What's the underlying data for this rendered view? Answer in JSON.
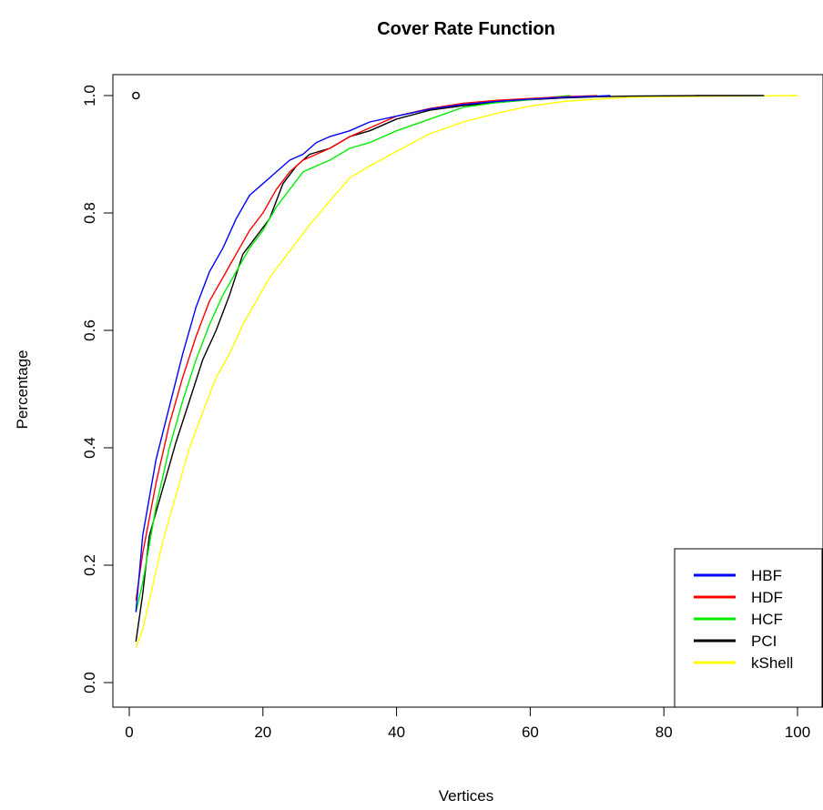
{
  "chart_data": {
    "type": "line",
    "title": "Cover Rate Function",
    "xlabel": "Vertices",
    "ylabel": "Percentage",
    "xlim": [
      0,
      100
    ],
    "ylim": [
      0,
      1
    ],
    "x_ticks": [
      0,
      20,
      40,
      60,
      80,
      100
    ],
    "x_tick_labels": [
      "0",
      "20",
      "40",
      "60",
      "80",
      "100"
    ],
    "y_ticks": [
      0,
      0.2,
      0.4,
      0.6,
      0.8,
      1.0
    ],
    "y_tick_labels": [
      "0.0",
      "0.2",
      "0.4",
      "0.6",
      "0.8",
      "1.0"
    ],
    "grid": false,
    "legend_position": "bottom-right",
    "marker_point": {
      "x": 1,
      "y": 1.0
    },
    "series": [
      {
        "name": "HBF",
        "color": "#0000ff",
        "x": [
          1,
          2,
          4,
          6,
          8,
          10,
          12,
          14,
          16,
          18,
          20,
          22,
          24,
          26,
          28,
          30,
          33,
          36,
          40,
          45,
          50,
          55,
          60,
          65,
          70,
          72
        ],
        "y": [
          0.12,
          0.25,
          0.38,
          0.47,
          0.56,
          0.64,
          0.7,
          0.74,
          0.79,
          0.83,
          0.85,
          0.87,
          0.89,
          0.9,
          0.92,
          0.93,
          0.94,
          0.955,
          0.965,
          0.977,
          0.985,
          0.99,
          0.994,
          0.997,
          0.999,
          1.0
        ]
      },
      {
        "name": "HDF",
        "color": "#ff0000",
        "x": [
          1,
          2,
          4,
          6,
          8,
          10,
          12,
          14,
          16,
          18,
          20,
          22,
          24,
          26,
          28,
          30,
          33,
          36,
          40,
          45,
          50,
          55,
          60,
          65,
          68,
          70
        ],
        "y": [
          0.14,
          0.22,
          0.34,
          0.44,
          0.52,
          0.59,
          0.65,
          0.69,
          0.73,
          0.77,
          0.8,
          0.84,
          0.87,
          0.89,
          0.9,
          0.91,
          0.93,
          0.945,
          0.965,
          0.978,
          0.987,
          0.992,
          0.995,
          0.998,
          0.999,
          1.0
        ]
      },
      {
        "name": "HCF",
        "color": "#00ee00",
        "x": [
          1,
          2,
          4,
          6,
          8,
          10,
          12,
          14,
          16,
          18,
          20,
          22,
          24,
          26,
          28,
          30,
          33,
          36,
          40,
          45,
          50,
          55,
          60,
          63,
          66
        ],
        "y": [
          0.12,
          0.17,
          0.3,
          0.4,
          0.48,
          0.55,
          0.61,
          0.66,
          0.7,
          0.74,
          0.77,
          0.81,
          0.84,
          0.87,
          0.88,
          0.89,
          0.91,
          0.92,
          0.94,
          0.96,
          0.98,
          0.988,
          0.993,
          0.997,
          1.0
        ]
      },
      {
        "name": "PCI",
        "color": "#000000",
        "x": [
          1,
          2,
          3,
          5,
          7,
          9,
          11,
          13,
          15,
          17,
          19,
          21,
          23,
          25,
          27,
          30,
          33,
          36,
          40,
          45,
          50,
          55,
          60,
          65,
          70,
          75,
          85,
          90,
          95
        ],
        "y": [
          0.07,
          0.15,
          0.25,
          0.33,
          0.41,
          0.48,
          0.55,
          0.6,
          0.66,
          0.73,
          0.76,
          0.79,
          0.85,
          0.88,
          0.9,
          0.91,
          0.93,
          0.94,
          0.96,
          0.975,
          0.983,
          0.988,
          0.993,
          0.996,
          0.998,
          0.999,
          1.0,
          1.0,
          1.0
        ]
      },
      {
        "name": "kShell",
        "color": "#ffff00",
        "x": [
          1,
          2,
          3,
          5,
          7,
          9,
          11,
          13,
          15,
          17,
          19,
          21,
          23,
          25,
          27,
          30,
          33,
          36,
          40,
          45,
          50,
          55,
          60,
          65,
          70,
          75,
          80,
          90,
          100
        ],
        "y": [
          0.06,
          0.09,
          0.14,
          0.24,
          0.32,
          0.4,
          0.46,
          0.52,
          0.56,
          0.61,
          0.65,
          0.69,
          0.72,
          0.75,
          0.78,
          0.82,
          0.86,
          0.88,
          0.905,
          0.935,
          0.955,
          0.97,
          0.982,
          0.99,
          0.994,
          0.997,
          0.998,
          0.999,
          1.0
        ]
      }
    ]
  }
}
